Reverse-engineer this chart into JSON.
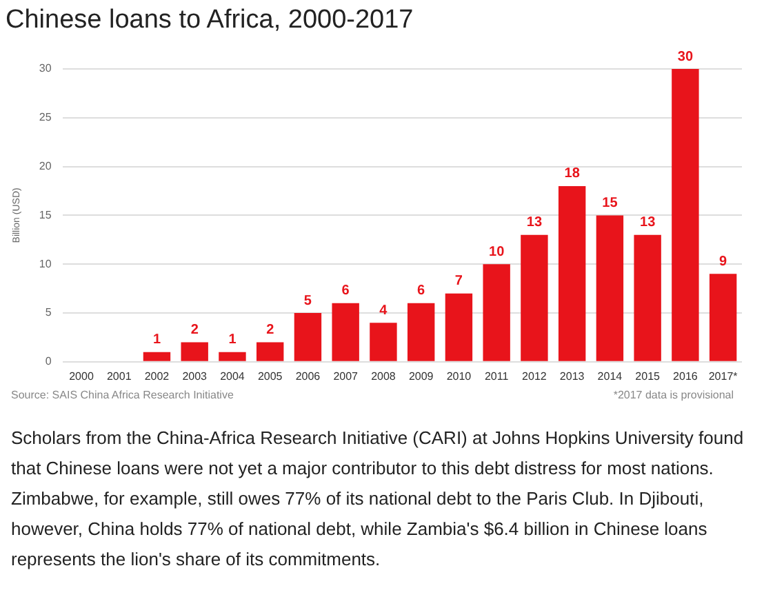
{
  "chart_data": {
    "type": "bar",
    "title": "Chinese loans to Africa, 2000-2017",
    "ylabel": "Billion (USD)",
    "categories": [
      "2000",
      "2001",
      "2002",
      "2003",
      "2004",
      "2005",
      "2006",
      "2007",
      "2008",
      "2009",
      "2010",
      "2011",
      "2012",
      "2013",
      "2014",
      "2015",
      "2016",
      "2017*"
    ],
    "values": [
      0,
      0,
      1,
      2,
      1,
      2,
      5,
      6,
      4,
      6,
      7,
      10,
      13,
      18,
      15,
      13,
      30,
      9
    ],
    "value_labels": [
      null,
      null,
      "1",
      "2",
      "1",
      "2",
      "5",
      "6",
      "4",
      "6",
      "7",
      "10",
      "13",
      "18",
      "15",
      "13",
      "30",
      "9"
    ],
    "color": "#e8141b",
    "ylim": [
      0,
      30
    ],
    "yticks": [
      0,
      5,
      10,
      15,
      20,
      25,
      30
    ],
    "grid": "y",
    "legend": false,
    "annotations": [
      "Source: SAIS China Africa Research Initiative",
      "*2017 data is provisional",
      "Scholars from the China-Africa Research Initiative (CARI) at Johns Hopkins University found that Chinese loans were not yet a major contributor to this debt distress for most nations. Zimbabwe, for example, still owes 77% of its national debt to the Paris Club. In Djibouti, however, China holds 77% of national debt, while Zambia's $6.4 billion in Chinese loans represents the lion's share of its commitments."
    ]
  }
}
